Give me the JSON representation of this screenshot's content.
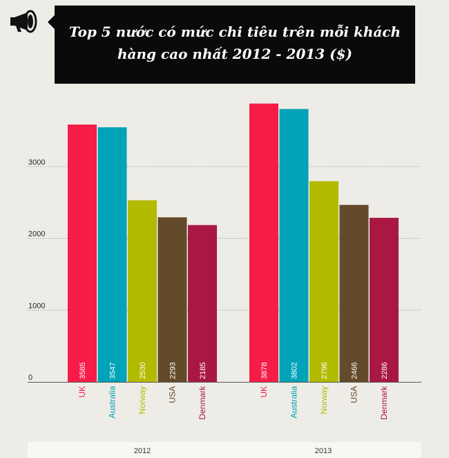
{
  "title": "Top 5 nước có mức chi tiêu trên mỗi khách hàng cao nhất 2012 - 2013 ($)",
  "icons": {
    "header": "megaphone-icon"
  },
  "colors": {
    "UK": "#f61c48",
    "Australia": "#00a3b8",
    "Norway": "#b2bb00",
    "USA": "#634a2a",
    "Denmark": "#a81843",
    "background": "#eeece6",
    "title_bg": "#0a0a0a"
  },
  "chart_data": {
    "type": "bar",
    "title": "Top 5 nước có mức chi tiêu trên mỗi khách hàng cao nhất 2012 - 2013 ($)",
    "xlabel": "",
    "ylabel": "",
    "ylim": [
      0,
      4000
    ],
    "yticks": [
      0,
      1000,
      2000,
      3000
    ],
    "grid": true,
    "categories": [
      "UK",
      "Australia",
      "Norway",
      "USA",
      "Denmark"
    ],
    "groups": [
      {
        "name": "2012",
        "values": [
          3585,
          3547,
          2530,
          2293,
          2185
        ]
      },
      {
        "name": "2013",
        "values": [
          3878,
          3802,
          2796,
          2466,
          2286
        ]
      }
    ]
  }
}
